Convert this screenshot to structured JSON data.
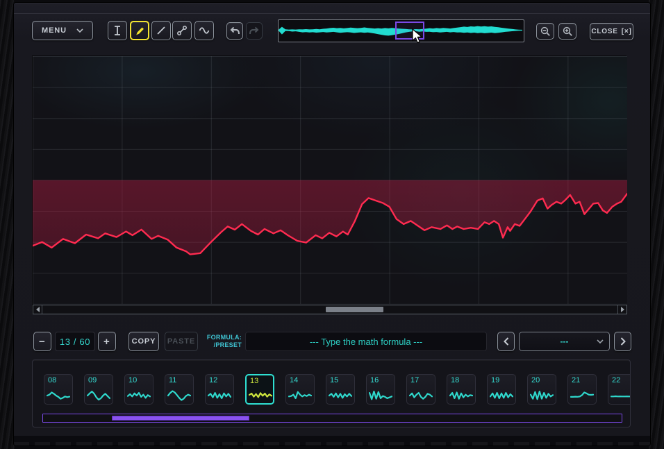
{
  "toolbar": {
    "menu_label": "MENU",
    "tools": [
      {
        "id": "ibeam",
        "name": "text-select-tool",
        "selected": false
      },
      {
        "id": "pencil",
        "name": "pencil-tool",
        "selected": true
      },
      {
        "id": "line",
        "name": "line-tool",
        "selected": false
      },
      {
        "id": "bezier",
        "name": "bezier-tool",
        "selected": false
      },
      {
        "id": "sine",
        "name": "sine-tool",
        "selected": false
      }
    ],
    "close_button": {
      "label": "CLOSE",
      "icon": "[×]"
    }
  },
  "frame_controls": {
    "counter": "13 / 60",
    "minus": "−",
    "plus": "+",
    "copy": "COPY",
    "paste": "PASTE",
    "formula_label_line1": "FORMULA:",
    "formula_label_line2": "/PRESET",
    "formula_placeholder": "--- Type the math formula ---",
    "preset_value": "---"
  },
  "colors": {
    "accent_cyan": "#2fd8cc",
    "accent_yellow": "#f2e431",
    "wave_red": "#ff2b50",
    "wave_fill_red": "#c11c46",
    "purple": "#7a49e6",
    "thumb_wave_selected": "#cde53e"
  },
  "editor": {
    "points": [
      [
        0,
        -0.53
      ],
      [
        0.016,
        -0.5
      ],
      [
        0.032,
        -0.545
      ],
      [
        0.051,
        -0.475
      ],
      [
        0.071,
        -0.51
      ],
      [
        0.09,
        -0.44
      ],
      [
        0.11,
        -0.47
      ],
      [
        0.122,
        -0.43
      ],
      [
        0.141,
        -0.46
      ],
      [
        0.157,
        -0.415
      ],
      [
        0.168,
        -0.445
      ],
      [
        0.183,
        -0.4
      ],
      [
        0.2,
        -0.475
      ],
      [
        0.211,
        -0.45
      ],
      [
        0.227,
        -0.48
      ],
      [
        0.242,
        -0.545
      ],
      [
        0.258,
        -0.575
      ],
      [
        0.265,
        -0.6
      ],
      [
        0.282,
        -0.59
      ],
      [
        0.3,
        -0.5
      ],
      [
        0.317,
        -0.42
      ],
      [
        0.328,
        -0.375
      ],
      [
        0.34,
        -0.4
      ],
      [
        0.352,
        -0.355
      ],
      [
        0.367,
        -0.41
      ],
      [
        0.379,
        -0.44
      ],
      [
        0.39,
        -0.395
      ],
      [
        0.405,
        -0.43
      ],
      [
        0.417,
        -0.405
      ],
      [
        0.429,
        -0.445
      ],
      [
        0.445,
        -0.49
      ],
      [
        0.46,
        -0.505
      ],
      [
        0.476,
        -0.445
      ],
      [
        0.487,
        -0.47
      ],
      [
        0.499,
        -0.425
      ],
      [
        0.511,
        -0.455
      ],
      [
        0.522,
        -0.415
      ],
      [
        0.53,
        -0.44
      ],
      [
        0.542,
        -0.33
      ],
      [
        0.554,
        -0.195
      ],
      [
        0.565,
        -0.145
      ],
      [
        0.577,
        -0.165
      ],
      [
        0.589,
        -0.185
      ],
      [
        0.6,
        -0.215
      ],
      [
        0.612,
        -0.315
      ],
      [
        0.624,
        -0.355
      ],
      [
        0.636,
        -0.33
      ],
      [
        0.647,
        -0.365
      ],
      [
        0.659,
        -0.405
      ],
      [
        0.671,
        -0.38
      ],
      [
        0.686,
        -0.395
      ],
      [
        0.697,
        -0.365
      ],
      [
        0.706,
        -0.395
      ],
      [
        0.714,
        -0.375
      ],
      [
        0.725,
        -0.395
      ],
      [
        0.737,
        -0.385
      ],
      [
        0.749,
        -0.395
      ],
      [
        0.76,
        -0.34
      ],
      [
        0.768,
        -0.355
      ],
      [
        0.776,
        -0.33
      ],
      [
        0.784,
        -0.355
      ],
      [
        0.791,
        -0.465
      ],
      [
        0.799,
        -0.38
      ],
      [
        0.803,
        -0.41
      ],
      [
        0.811,
        -0.355
      ],
      [
        0.819,
        -0.37
      ],
      [
        0.831,
        -0.295
      ],
      [
        0.838,
        -0.25
      ],
      [
        0.849,
        -0.165
      ],
      [
        0.858,
        -0.148
      ],
      [
        0.866,
        -0.23
      ],
      [
        0.873,
        -0.2
      ],
      [
        0.881,
        -0.175
      ],
      [
        0.889,
        -0.19
      ],
      [
        0.896,
        -0.16
      ],
      [
        0.904,
        -0.12
      ],
      [
        0.913,
        -0.19
      ],
      [
        0.92,
        -0.175
      ],
      [
        0.928,
        -0.275
      ],
      [
        0.936,
        -0.23
      ],
      [
        0.943,
        -0.19
      ],
      [
        0.951,
        -0.185
      ],
      [
        0.959,
        -0.245
      ],
      [
        0.966,
        -0.265
      ],
      [
        0.975,
        -0.215
      ],
      [
        0.983,
        -0.19
      ],
      [
        0.99,
        -0.175
      ],
      [
        1,
        -0.11
      ]
    ]
  },
  "overview": {
    "amps": [
      [
        0.05,
        0.05
      ],
      [
        0.45,
        0.55
      ],
      [
        0.12,
        0.1
      ],
      [
        0.08,
        0.12
      ],
      [
        0.1,
        0.18
      ],
      [
        0.08,
        0.15
      ],
      [
        0.12,
        0.22
      ],
      [
        0.1,
        0.28
      ],
      [
        0.14,
        0.25
      ],
      [
        0.1,
        0.3
      ],
      [
        0.12,
        0.26
      ],
      [
        0.15,
        0.32
      ],
      [
        0.12,
        0.28
      ],
      [
        0.18,
        0.24
      ],
      [
        0.22,
        0.3
      ],
      [
        0.28,
        0.26
      ],
      [
        0.32,
        0.22
      ],
      [
        0.26,
        0.28
      ],
      [
        0.3,
        0.34
      ],
      [
        0.24,
        0.3
      ],
      [
        0.28,
        0.26
      ],
      [
        0.34,
        0.3
      ],
      [
        0.3,
        0.36
      ],
      [
        0.26,
        0.32
      ],
      [
        0.3,
        0.28
      ],
      [
        0.36,
        0.34
      ],
      [
        0.3,
        0.3
      ],
      [
        0.26,
        0.36
      ],
      [
        0.22,
        0.44
      ],
      [
        0.26,
        0.52
      ],
      [
        0.22,
        0.6
      ],
      [
        0.28,
        0.68
      ],
      [
        0.24,
        0.72
      ],
      [
        0.3,
        0.66
      ],
      [
        0.26,
        0.58
      ],
      [
        0.22,
        0.5
      ],
      [
        0.18,
        0.4
      ],
      [
        0.15,
        0.3
      ],
      [
        0.12,
        0.22
      ],
      [
        0.1,
        0.16
      ],
      [
        0.14,
        0.14
      ],
      [
        0.12,
        0.2
      ],
      [
        0.16,
        0.16
      ],
      [
        0.2,
        0.22
      ],
      [
        0.26,
        0.2
      ],
      [
        0.22,
        0.26
      ],
      [
        0.28,
        0.24
      ],
      [
        0.24,
        0.3
      ],
      [
        0.3,
        0.26
      ],
      [
        0.26,
        0.22
      ],
      [
        0.22,
        0.28
      ],
      [
        0.28,
        0.24
      ],
      [
        0.34,
        0.3
      ],
      [
        0.4,
        0.28
      ],
      [
        0.46,
        0.34
      ],
      [
        0.42,
        0.3
      ],
      [
        0.5,
        0.36
      ],
      [
        0.46,
        0.32
      ],
      [
        0.54,
        0.38
      ],
      [
        0.48,
        0.34
      ],
      [
        0.52,
        0.4
      ],
      [
        0.46,
        0.36
      ],
      [
        0.5,
        0.32
      ],
      [
        0.44,
        0.38
      ],
      [
        0.38,
        0.34
      ],
      [
        0.32,
        0.28
      ],
      [
        0.26,
        0.22
      ],
      [
        0.2,
        0.18
      ],
      [
        0.15,
        0.14
      ],
      [
        0.1,
        0.1
      ],
      [
        0.07,
        0.07
      ],
      [
        0.05,
        0.05
      ]
    ]
  },
  "frames": {
    "selected": "13",
    "items": [
      {
        "label": "08",
        "wave": [
          0,
          0.1,
          0.35,
          0.2,
          0,
          -0.15,
          -0.35,
          -0.25,
          -0.1,
          -0.18,
          -0.12
        ]
      },
      {
        "label": "09",
        "wave": [
          0,
          0.25,
          0.45,
          0.2,
          -0.2,
          -0.45,
          -0.3,
          0,
          0.2,
          -0.05,
          -0.3
        ]
      },
      {
        "label": "10",
        "wave": [
          -0.05,
          0.15,
          -0.1,
          0.25,
          0,
          0.3,
          -0.15,
          0.1,
          -0.25,
          0.05,
          -0.1
        ]
      },
      {
        "label": "11",
        "wave": [
          0,
          0.3,
          0.5,
          0.35,
          0.05,
          -0.25,
          -0.5,
          -0.35,
          -0.05,
          0.1,
          0
        ]
      },
      {
        "label": "12",
        "wave": [
          0,
          0.2,
          -0.2,
          0.3,
          -0.25,
          0.15,
          -0.3,
          0.25,
          -0.1,
          0.2,
          -0.15
        ]
      },
      {
        "label": "13",
        "wave": [
          0,
          0.15,
          -0.2,
          0.1,
          -0.25,
          0.2,
          -0.1,
          0.15,
          -0.2,
          0.05,
          -0.1
        ]
      },
      {
        "label": "14",
        "wave": [
          -0.1,
          -0.05,
          0.1,
          -0.3,
          0.4,
          0.1,
          -0.1,
          0.05,
          -0.05,
          0.1,
          0
        ]
      },
      {
        "label": "15",
        "wave": [
          0,
          0.2,
          -0.15,
          0.25,
          -0.2,
          0.2,
          -0.25,
          0.15,
          -0.1,
          0.2,
          -0.05
        ]
      },
      {
        "label": "16",
        "wave": [
          0.3,
          -0.4,
          0.45,
          -0.35,
          0.4,
          -0.3,
          -0.05,
          -0.15,
          -0.3,
          -0.2,
          -0.1
        ]
      },
      {
        "label": "17",
        "wave": [
          0,
          0.25,
          -0.2,
          0.1,
          0.3,
          -0.15,
          -0.35,
          -0.15,
          0.2,
          0.1,
          -0.1
        ]
      },
      {
        "label": "18",
        "wave": [
          0,
          0.3,
          -0.3,
          0.35,
          -0.35,
          0.25,
          -0.2,
          0.1,
          -0.1,
          0.05,
          0
        ]
      },
      {
        "label": "19",
        "wave": [
          -0.1,
          0.25,
          -0.25,
          0.3,
          -0.3,
          0.25,
          -0.25,
          0.3,
          -0.2,
          0.15,
          -0.1
        ]
      },
      {
        "label": "20",
        "wave": [
          0.1,
          -0.35,
          0.4,
          -0.4,
          0.45,
          -0.35,
          0.3,
          -0.25,
          0.2,
          -0.1,
          0.05
        ]
      },
      {
        "label": "21",
        "wave": [
          -0.15,
          -0.15,
          -0.12,
          -0.14,
          -0.1,
          0.05,
          0.35,
          0.25,
          0.1,
          0.08,
          0.1
        ]
      },
      {
        "label": "22",
        "wave": [
          -0.1,
          -0.1,
          -0.08,
          -0.1,
          -0.09,
          -0.1,
          -0.1,
          -0.09,
          -0.1,
          -0.1,
          -0.1
        ]
      }
    ]
  }
}
